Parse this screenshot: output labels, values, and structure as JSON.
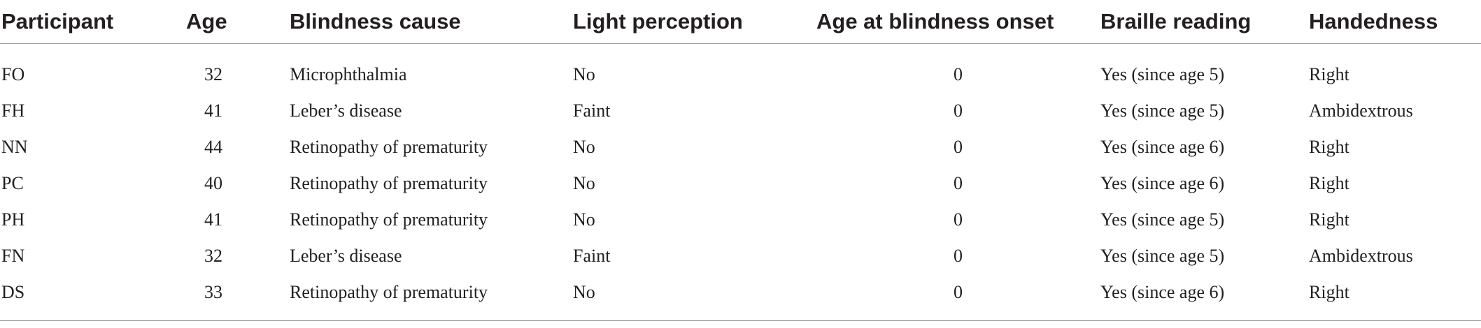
{
  "table": {
    "headers": [
      "Participant",
      "Age",
      "Blindness cause",
      "Light perception",
      "Age at blindness onset",
      "Braille reading",
      "Handedness"
    ],
    "rows": [
      [
        "FO",
        "32",
        "Microphthalmia",
        "No",
        "0",
        "Yes (since age 5)",
        "Right"
      ],
      [
        "FH",
        "41",
        "Leber’s disease",
        "Faint",
        "0",
        "Yes (since age 5)",
        "Ambidextrous"
      ],
      [
        "NN",
        "44",
        "Retinopathy of prematurity",
        "No",
        "0",
        "Yes (since age 6)",
        "Right"
      ],
      [
        "PC",
        "40",
        "Retinopathy of prematurity",
        "No",
        "0",
        "Yes (since age 6)",
        "Right"
      ],
      [
        "PH",
        "41",
        "Retinopathy of prematurity",
        "No",
        "0",
        "Yes (since age 5)",
        "Right"
      ],
      [
        "FN",
        "32",
        "Leber’s disease",
        "Faint",
        "0",
        "Yes (since age 5)",
        "Ambidextrous"
      ],
      [
        "DS",
        "33",
        "Retinopathy of prematurity",
        "No",
        "0",
        "Yes (since age 6)",
        "Right"
      ]
    ]
  }
}
